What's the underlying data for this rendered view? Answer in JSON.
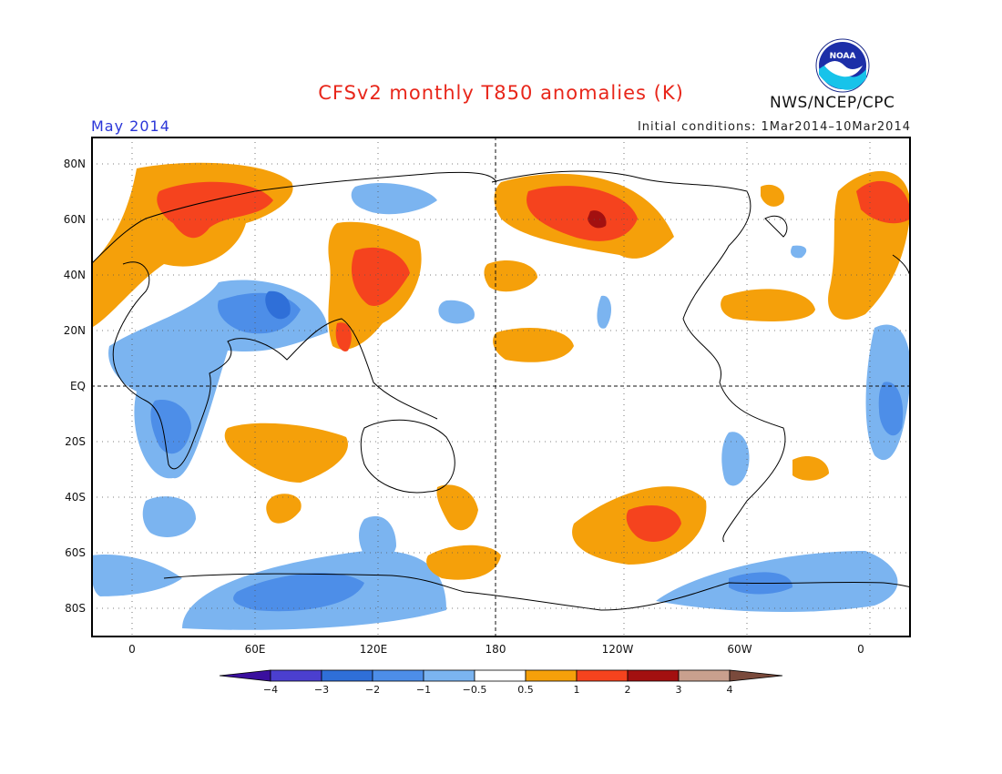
{
  "title": "CFSv2 monthly T850 anomalies (K)",
  "month": "May 2014",
  "initial_conditions": "Initial conditions: 1Mar2014–10Mar2014",
  "agency": "NWS/NCEP/CPC",
  "logo": {
    "text": "NOAA",
    "icon": "noaa-logo-icon"
  },
  "map": {
    "lat_labels": [
      "80N",
      "60N",
      "40N",
      "20N",
      "EQ",
      "20S",
      "40S",
      "60S",
      "80S"
    ],
    "lon_labels": [
      "0",
      "60E",
      "120E",
      "180",
      "120W",
      "60W",
      "0"
    ],
    "lon_range": [
      -20,
      380
    ],
    "lat_range": [
      -90,
      90
    ]
  },
  "colorbar": {
    "labels": [
      "−4",
      "−3",
      "−2",
      "−1",
      "−0.5",
      "0.5",
      "1",
      "2",
      "3",
      "4"
    ],
    "colors": [
      "#3a0f9e",
      "#4b3fcf",
      "#2f6fd8",
      "#4d8ee8",
      "#7bb4f0",
      "#ffffff",
      "#f5a00a",
      "#f5431e",
      "#a31010",
      "#c9a08e",
      "#7a4a3c"
    ]
  },
  "palette": {
    "warm1": "#f5a00a",
    "warm2": "#f5431e",
    "warm3": "#a31010",
    "cool1": "#7bb4f0",
    "cool2": "#4d8ee8",
    "cool3": "#2f6fd8"
  }
}
